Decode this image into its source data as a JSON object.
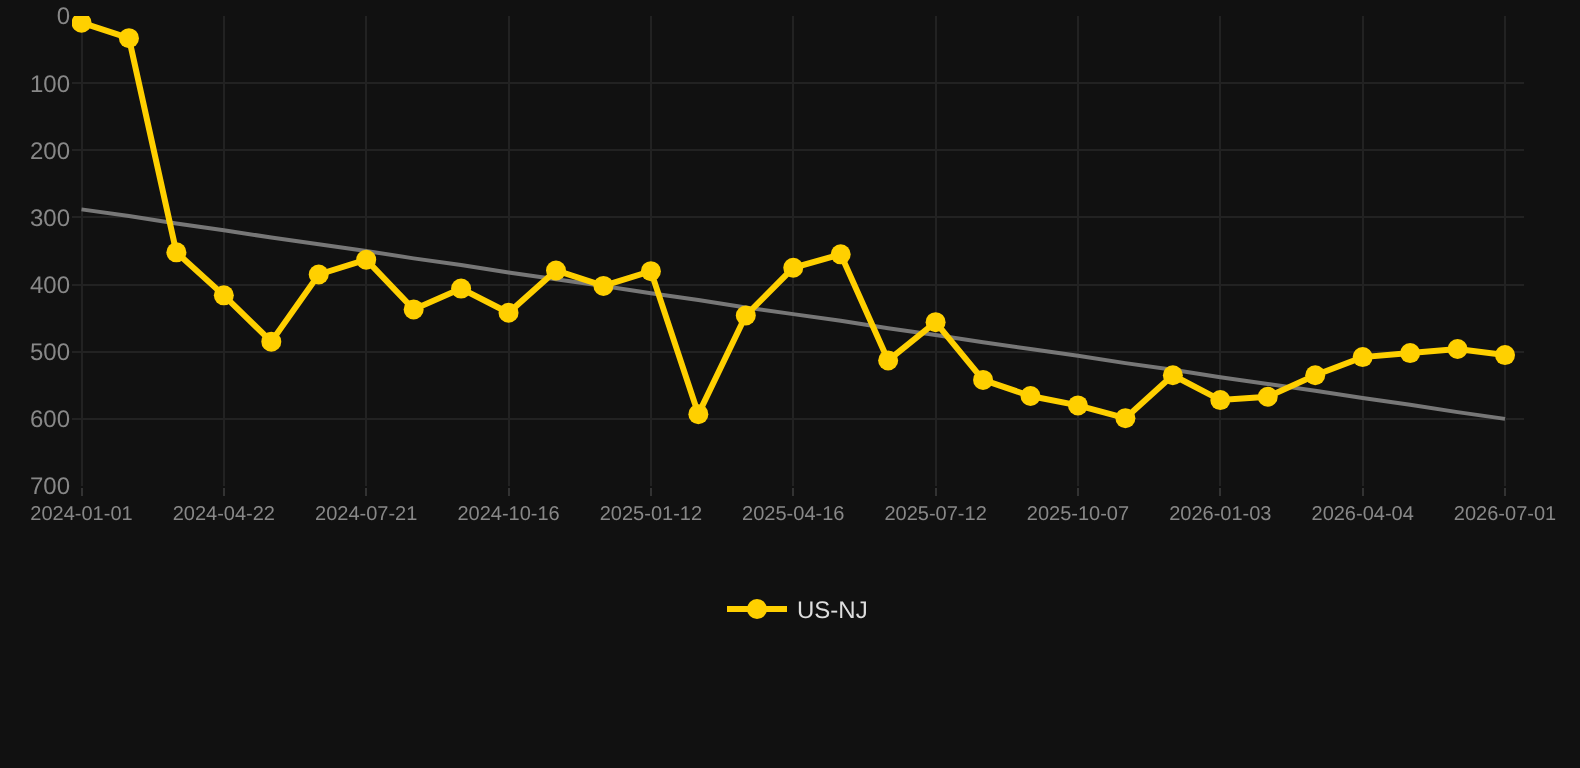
{
  "chart_data": {
    "type": "line",
    "categories": [
      "2024-01-01",
      null,
      null,
      "2024-04-22",
      null,
      null,
      "2024-07-21",
      null,
      null,
      "2024-10-16",
      null,
      null,
      "2025-01-12",
      null,
      null,
      "2025-04-16",
      null,
      null,
      "2025-07-12",
      null,
      null,
      "2025-10-07",
      null,
      null,
      "2026-01-03",
      null,
      null,
      "2026-04-04",
      null,
      null,
      "2026-07-01"
    ],
    "series": [
      {
        "name": "US-NJ",
        "color": "#ffd000",
        "values": [
          10,
          33,
          352,
          416,
          485,
          385,
          363,
          437,
          406,
          442,
          379,
          402,
          380,
          593,
          446,
          375,
          355,
          513,
          456,
          542,
          566,
          580,
          599,
          535,
          572,
          567,
          535,
          508,
          502,
          496,
          505
        ]
      },
      {
        "type": "line",
        "color": "#777777",
        "values": [
          288,
          298,
          309,
          319,
          330,
          340,
          350,
          361,
          371,
          382,
          392,
          402,
          413,
          423,
          434,
          444,
          454,
          465,
          475,
          486,
          496,
          506,
          517,
          527,
          538,
          548,
          558,
          569,
          579,
          590,
          600
        ],
        "marker": "none"
      }
    ],
    "ylim": [
      700,
      0
    ],
    "yticks": [
      0,
      100,
      200,
      300,
      400,
      500,
      600,
      700
    ],
    "grid": true,
    "legend": "bottom",
    "marker": "circle",
    "line_style": "solid"
  }
}
